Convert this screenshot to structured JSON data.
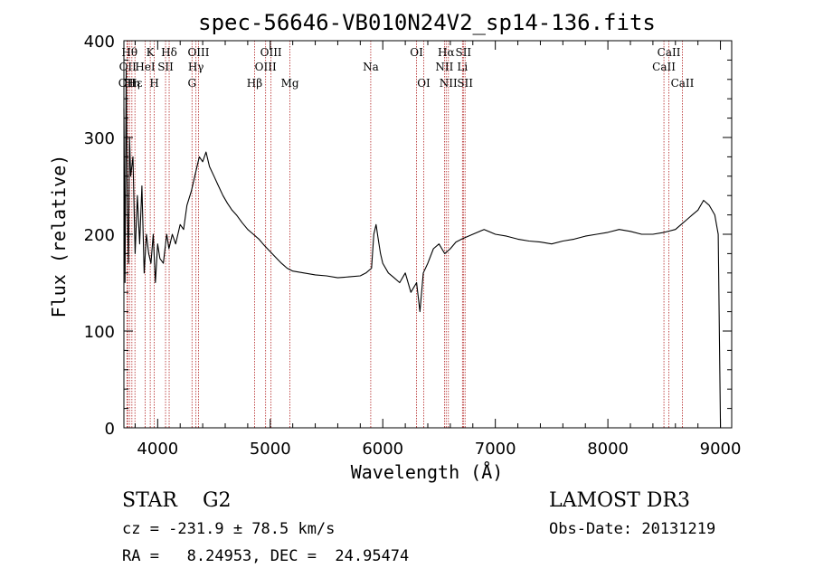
{
  "chart_data": {
    "type": "line",
    "title": "spec-56646-VB010N24V2_sp14-136.fits",
    "xlabel": "Wavelength (Å)",
    "ylabel": "Flux (relative)",
    "xlim": [
      3700,
      9100
    ],
    "ylim": [
      0,
      400
    ],
    "xticks": [
      4000,
      5000,
      6000,
      7000,
      8000,
      9000
    ],
    "yticks": [
      0,
      100,
      200,
      300,
      400
    ],
    "grid": false,
    "series": [
      {
        "x": [
          3700,
          3710,
          3720,
          3730,
          3740,
          3750,
          3760,
          3780,
          3800,
          3820,
          3840,
          3860,
          3880,
          3900,
          3920,
          3940,
          3960,
          3980,
          4000,
          4020,
          4050,
          4080,
          4100,
          4130,
          4160,
          4200,
          4230,
          4260,
          4300,
          4340,
          4370,
          4400,
          4430,
          4460,
          4500,
          4540,
          4580,
          4620,
          4660,
          4700,
          4750,
          4800,
          4850,
          4900,
          4950,
          5000,
          5050,
          5100,
          5150,
          5200,
          5300,
          5400,
          5500,
          5600,
          5700,
          5800,
          5850,
          5900,
          5920,
          5940,
          5960,
          5980,
          6000,
          6050,
          6100,
          6150,
          6200,
          6250,
          6300,
          6330,
          6360,
          6400,
          6450,
          6500,
          6550,
          6600,
          6650,
          6700,
          6800,
          6900,
          7000,
          7100,
          7200,
          7300,
          7400,
          7500,
          7600,
          7700,
          7800,
          7900,
          8000,
          8100,
          8200,
          8300,
          8400,
          8500,
          8600,
          8650,
          8700,
          8750,
          8800,
          8850,
          8900,
          8950,
          8980,
          9000
        ],
        "y": [
          330,
          150,
          370,
          230,
          170,
          300,
          260,
          280,
          180,
          240,
          190,
          250,
          160,
          200,
          180,
          170,
          200,
          150,
          190,
          175,
          170,
          200,
          185,
          200,
          190,
          210,
          205,
          230,
          245,
          265,
          280,
          275,
          285,
          270,
          260,
          250,
          240,
          232,
          225,
          220,
          212,
          205,
          200,
          195,
          188,
          182,
          176,
          170,
          165,
          162,
          160,
          158,
          157,
          155,
          156,
          157,
          160,
          165,
          200,
          210,
          195,
          180,
          170,
          160,
          155,
          150,
          160,
          140,
          150,
          120,
          160,
          170,
          185,
          190,
          180,
          185,
          192,
          195,
          200,
          205,
          200,
          198,
          195,
          193,
          192,
          190,
          193,
          195,
          198,
          200,
          202,
          205,
          203,
          200,
          200,
          202,
          205,
          210,
          215,
          220,
          225,
          235,
          230,
          220,
          200,
          0
        ]
      }
    ],
    "lines": [
      {
        "x": 3727,
        "label": "OII",
        "row": 3
      },
      {
        "x": 3734,
        "label": "OII",
        "row": 2
      },
      {
        "x": 3750,
        "label": "Hθ",
        "row": 1
      },
      {
        "x": 3771,
        "label": "Hη",
        "row": 3
      },
      {
        "x": 3798,
        "label": "Hε",
        "row": 3
      },
      {
        "x": 3889,
        "label": "HeI",
        "row": 2
      },
      {
        "x": 3934,
        "label": "K",
        "row": 1
      },
      {
        "x": 3970,
        "label": "H",
        "row": 3
      },
      {
        "x": 4070,
        "label": "SII",
        "row": 2
      },
      {
        "x": 4102,
        "label": "Hδ",
        "row": 1
      },
      {
        "x": 4305,
        "label": "G",
        "row": 3
      },
      {
        "x": 4340,
        "label": "Hγ",
        "row": 2
      },
      {
        "x": 4363,
        "label": "OIII",
        "row": 1
      },
      {
        "x": 4861,
        "label": "Hβ",
        "row": 3
      },
      {
        "x": 4959,
        "label": "OIII",
        "row": 2
      },
      {
        "x": 5007,
        "label": "OIII",
        "row": 1
      },
      {
        "x": 5175,
        "label": "Mg",
        "row": 3
      },
      {
        "x": 5893,
        "label": "Na",
        "row": 2
      },
      {
        "x": 6300,
        "label": "OI",
        "row": 1
      },
      {
        "x": 6364,
        "label": "OI",
        "row": 3
      },
      {
        "x": 6548,
        "label": "NII",
        "row": 2
      },
      {
        "x": 6563,
        "label": "Hα",
        "row": 1
      },
      {
        "x": 6583,
        "label": "NII",
        "row": 3
      },
      {
        "x": 6708,
        "label": "Li",
        "row": 2
      },
      {
        "x": 6716,
        "label": "SII",
        "row": 1
      },
      {
        "x": 6731,
        "label": "SII",
        "row": 3
      },
      {
        "x": 8498,
        "label": "CaII",
        "row": 2
      },
      {
        "x": 8542,
        "label": "CaII",
        "row": 1
      },
      {
        "x": 8662,
        "label": "CaII",
        "row": 3
      }
    ]
  },
  "info": {
    "class_text": "STAR    G2",
    "survey": "LAMOST DR3",
    "cz": "cz = -231.9 ± 78.5 km/s",
    "obs_date": "Obs-Date: 20131219",
    "radec": "RA =   8.24953, DEC =  24.95474"
  },
  "colors": {
    "spectrum": "#000000",
    "line_markers": "#b22222",
    "axes": "#000000"
  }
}
